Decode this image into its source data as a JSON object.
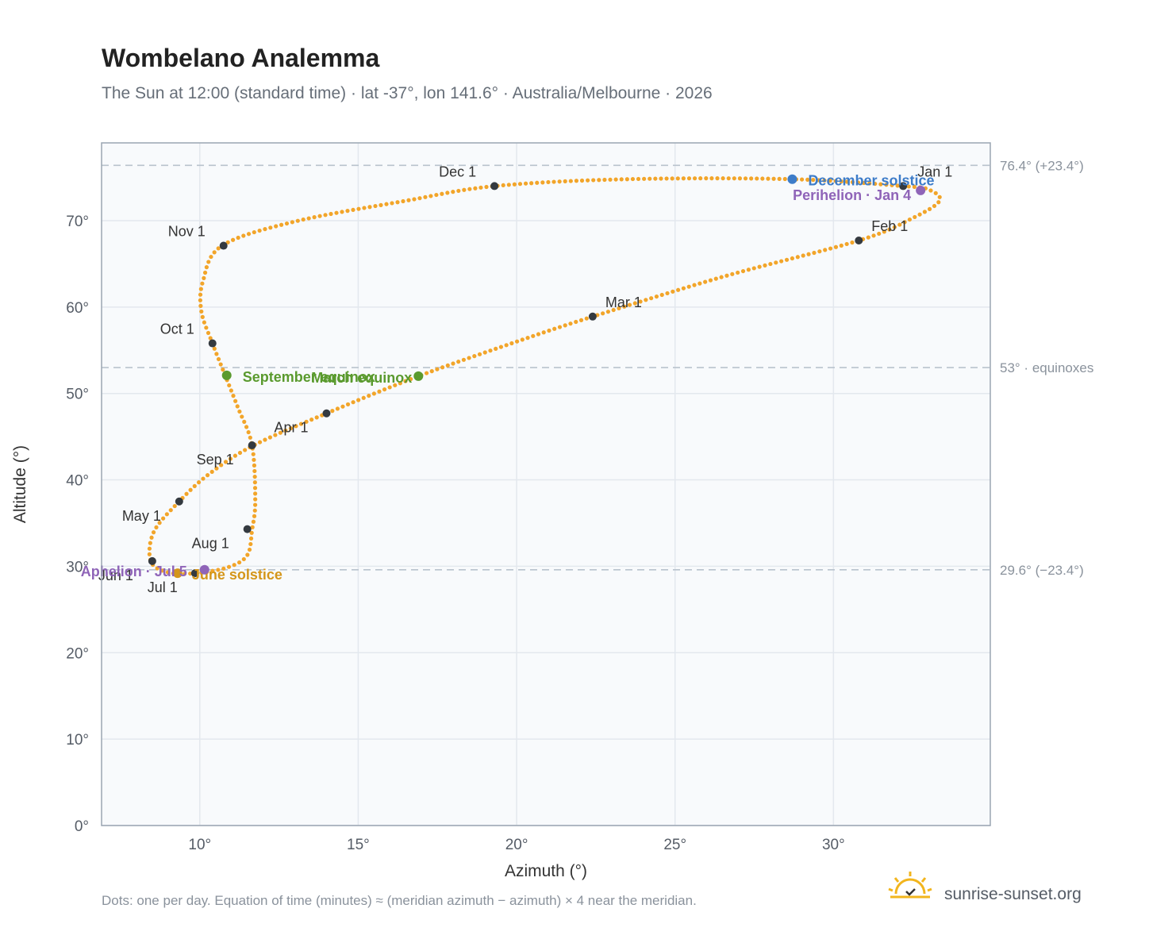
{
  "title": "Wombelano Analemma",
  "subtitle": "The Sun at 12:00 (standard time) · lat -37°, lon 141.6° · Australia/Melbourne · 2026",
  "footnote": "Dots: one per day. Equation of time (minutes) ≈ (meridian azimuth − azimuth) × 4 near the meridian.",
  "brand": {
    "name": "sunrise-sunset.org",
    "logo_icon": "sun-check-logo-icon",
    "color": "#f2b51d"
  },
  "colors": {
    "curve": "#f2a52a",
    "month_marker": "#343a40",
    "december_solstice": "#3d7cc9",
    "june_solstice": "#d4961a",
    "equinox": "#5a9a2e",
    "apsis": "#8f64b8",
    "reference_line": "#b9c3cd",
    "plot_background": "#f8fafc",
    "grid": "#e3e8ee",
    "frame": "#9aa5b2"
  },
  "chart_data": {
    "type": "scatter",
    "xlabel": "Azimuth (°)",
    "ylabel": "Altitude (°)",
    "xlim": [
      6.9,
      34.95
    ],
    "ylim": [
      0,
      79
    ],
    "x_ticks": [
      10,
      15,
      20,
      25,
      30
    ],
    "y_ticks": [
      0,
      10,
      20,
      30,
      40,
      50,
      60,
      70
    ],
    "x_tick_labels": [
      "10°",
      "15°",
      "20°",
      "25°",
      "30°"
    ],
    "y_tick_labels": [
      "0°",
      "10°",
      "20°",
      "30°",
      "40°",
      "50°",
      "60°",
      "70°"
    ],
    "grid": true,
    "reference_lines": [
      {
        "y": 76.4,
        "label": "76.4° (+23.4°)"
      },
      {
        "y": 53.0,
        "label": "53° · equinoxes"
      },
      {
        "y": 29.6,
        "label": "29.6° (−23.4°)"
      }
    ],
    "analemma_points": [
      [
        32.2,
        74.0
      ],
      [
        33.0,
        73.6
      ],
      [
        33.35,
        72.3
      ],
      [
        32.5,
        70.3
      ],
      [
        30.8,
        67.7
      ],
      [
        26.5,
        63.5
      ],
      [
        22.4,
        58.9
      ],
      [
        20.0,
        56.0
      ],
      [
        16.9,
        52.0
      ],
      [
        14.0,
        47.7
      ],
      [
        11.7,
        44.0
      ],
      [
        10.3,
        40.7
      ],
      [
        9.35,
        37.5
      ],
      [
        8.55,
        34.0
      ],
      [
        8.45,
        30.6
      ],
      [
        9.0,
        29.3
      ],
      [
        9.85,
        29.2
      ],
      [
        10.9,
        29.9
      ],
      [
        11.5,
        31.3
      ],
      [
        11.65,
        34.2
      ],
      [
        11.75,
        37.5
      ],
      [
        11.65,
        44.0
      ],
      [
        11.2,
        48.4
      ],
      [
        10.8,
        52.1
      ],
      [
        10.4,
        55.8
      ],
      [
        10.05,
        59.5
      ],
      [
        10.1,
        63.0
      ],
      [
        10.7,
        67.1
      ],
      [
        13.0,
        69.9
      ],
      [
        16.5,
        72.3
      ],
      [
        19.3,
        74.0
      ],
      [
        23.5,
        74.8
      ],
      [
        28.7,
        74.8
      ],
      [
        32.2,
        74.0
      ]
    ],
    "month_markers": [
      {
        "label": "Jan 1",
        "x": 32.2,
        "y": 74.0
      },
      {
        "label": "Feb 1",
        "x": 30.8,
        "y": 67.7
      },
      {
        "label": "Mar 1",
        "x": 22.4,
        "y": 58.9
      },
      {
        "label": "Apr 1",
        "x": 14.0,
        "y": 47.7
      },
      {
        "label": "May 1",
        "x": 9.35,
        "y": 37.5
      },
      {
        "label": "Jun 1",
        "x": 8.5,
        "y": 30.6
      },
      {
        "label": "Jul 1",
        "x": 9.85,
        "y": 29.2
      },
      {
        "label": "Aug 1",
        "x": 11.5,
        "y": 34.3
      },
      {
        "label": "Sep 1",
        "x": 11.65,
        "y": 44.0
      },
      {
        "label": "Oct 1",
        "x": 10.4,
        "y": 55.8
      },
      {
        "label": "Nov 1",
        "x": 10.75,
        "y": 67.1
      },
      {
        "label": "Dec 1",
        "x": 19.3,
        "y": 74.0
      }
    ],
    "events": [
      {
        "label": "December solstice",
        "x": 28.7,
        "y": 74.8,
        "color_key": "december_solstice"
      },
      {
        "label": "Perihelion · Jan 4",
        "x": 32.75,
        "y": 73.5,
        "color_key": "apsis"
      },
      {
        "label": "March equinox",
        "x": 16.9,
        "y": 52.0,
        "color_key": "equinox"
      },
      {
        "label": "September equinox",
        "x": 10.85,
        "y": 52.1,
        "color_key": "equinox"
      },
      {
        "label": "June solstice",
        "x": 9.3,
        "y": 29.2,
        "color_key": "june_solstice"
      },
      {
        "label": "Aphelion · Jul 5",
        "x": 10.15,
        "y": 29.6,
        "color_key": "apsis"
      }
    ]
  }
}
